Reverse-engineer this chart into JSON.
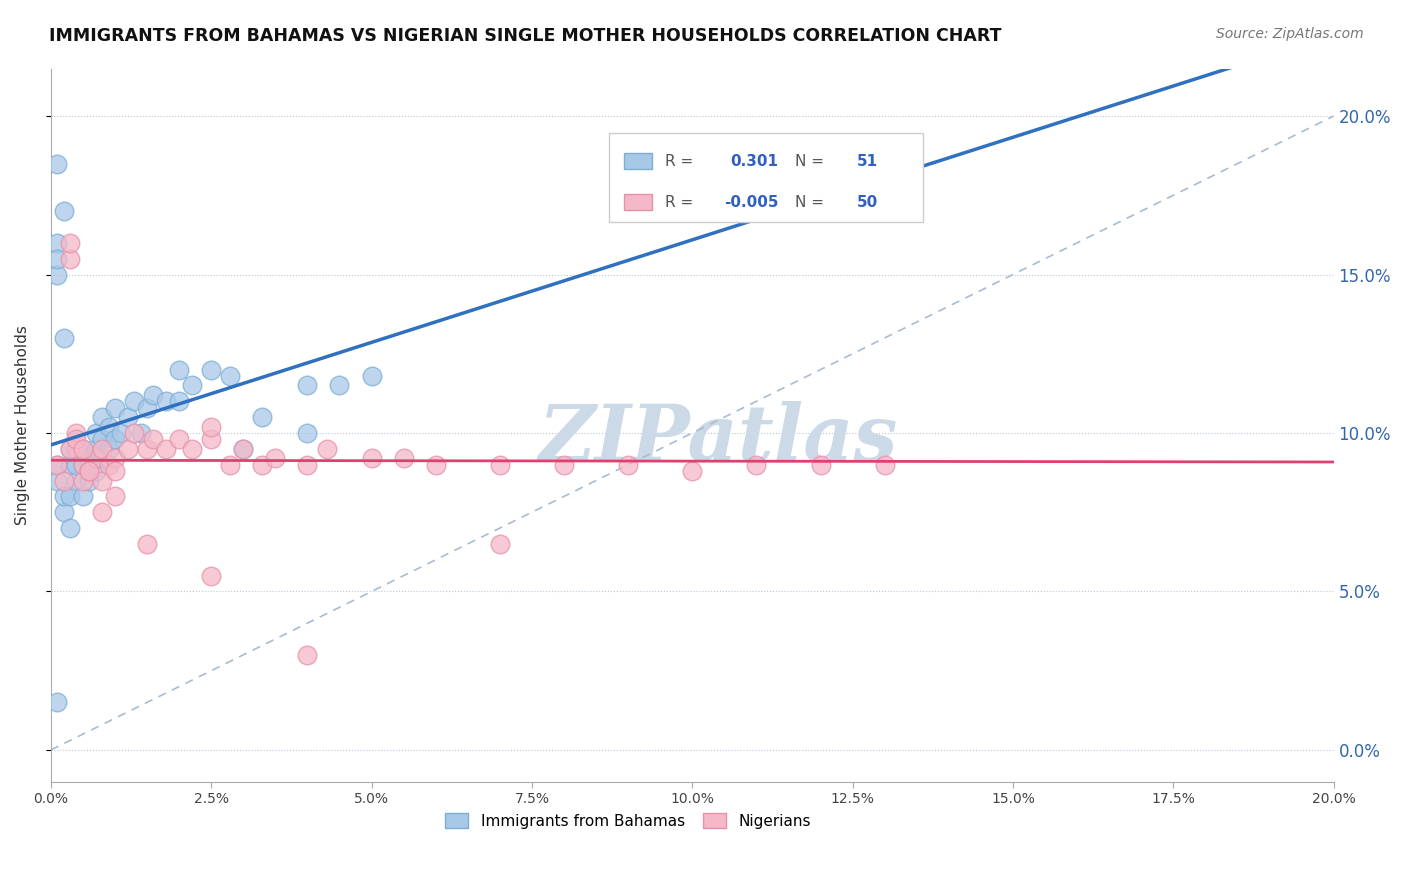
{
  "title": "IMMIGRANTS FROM BAHAMAS VS NIGERIAN SINGLE MOTHER HOUSEHOLDS CORRELATION CHART",
  "source": "Source: ZipAtlas.com",
  "ylabel": "Single Mother Households",
  "r_bahamas": 0.301,
  "n_bahamas": 51,
  "r_nigerian": -0.005,
  "n_nigerian": 50,
  "xlim": [
    0.0,
    0.2
  ],
  "ylim": [
    -0.01,
    0.215
  ],
  "blue_color": "#a8c8e8",
  "blue_edge_color": "#7aaed4",
  "pink_color": "#f4b8c8",
  "pink_edge_color": "#e890a8",
  "blue_line_color": "#3070c0",
  "pink_line_color": "#e04070",
  "dashed_line_color": "#aabbd0",
  "watermark_color": "#ccdae8",
  "legend_blue_label": "Immigrants from Bahamas",
  "legend_pink_label": "Nigerians",
  "bahamas_x": [
    0.001,
    0.001,
    0.001,
    0.001,
    0.002,
    0.002,
    0.002,
    0.003,
    0.003,
    0.003,
    0.004,
    0.004,
    0.004,
    0.005,
    0.005,
    0.005,
    0.006,
    0.006,
    0.007,
    0.007,
    0.007,
    0.008,
    0.008,
    0.008,
    0.009,
    0.009,
    0.01,
    0.01,
    0.011,
    0.012,
    0.013,
    0.014,
    0.015,
    0.016,
    0.018,
    0.02,
    0.02,
    0.022,
    0.025,
    0.028,
    0.03,
    0.033,
    0.04,
    0.04,
    0.045,
    0.05,
    0.001,
    0.001,
    0.002,
    0.003,
    0.001
  ],
  "bahamas_y": [
    0.085,
    0.09,
    0.15,
    0.16,
    0.075,
    0.08,
    0.17,
    0.08,
    0.09,
    0.095,
    0.085,
    0.09,
    0.095,
    0.08,
    0.09,
    0.095,
    0.085,
    0.09,
    0.088,
    0.095,
    0.1,
    0.092,
    0.098,
    0.105,
    0.095,
    0.102,
    0.098,
    0.108,
    0.1,
    0.105,
    0.11,
    0.1,
    0.108,
    0.112,
    0.11,
    0.11,
    0.12,
    0.115,
    0.12,
    0.118,
    0.095,
    0.105,
    0.115,
    0.1,
    0.115,
    0.118,
    0.185,
    0.155,
    0.13,
    0.07,
    0.015
  ],
  "nigerian_x": [
    0.001,
    0.002,
    0.003,
    0.003,
    0.004,
    0.004,
    0.005,
    0.005,
    0.006,
    0.007,
    0.008,
    0.008,
    0.009,
    0.01,
    0.01,
    0.012,
    0.013,
    0.015,
    0.016,
    0.018,
    0.02,
    0.022,
    0.025,
    0.025,
    0.028,
    0.03,
    0.033,
    0.035,
    0.04,
    0.043,
    0.05,
    0.055,
    0.06,
    0.07,
    0.08,
    0.09,
    0.1,
    0.11,
    0.12,
    0.13,
    0.003,
    0.004,
    0.005,
    0.006,
    0.008,
    0.01,
    0.015,
    0.025,
    0.04,
    0.07
  ],
  "nigerian_y": [
    0.09,
    0.085,
    0.155,
    0.16,
    0.095,
    0.1,
    0.085,
    0.09,
    0.088,
    0.092,
    0.085,
    0.095,
    0.09,
    0.092,
    0.088,
    0.095,
    0.1,
    0.095,
    0.098,
    0.095,
    0.098,
    0.095,
    0.098,
    0.102,
    0.09,
    0.095,
    0.09,
    0.092,
    0.09,
    0.095,
    0.092,
    0.092,
    0.09,
    0.09,
    0.09,
    0.09,
    0.088,
    0.09,
    0.09,
    0.09,
    0.095,
    0.098,
    0.095,
    0.088,
    0.075,
    0.08,
    0.065,
    0.055,
    0.03,
    0.065
  ]
}
